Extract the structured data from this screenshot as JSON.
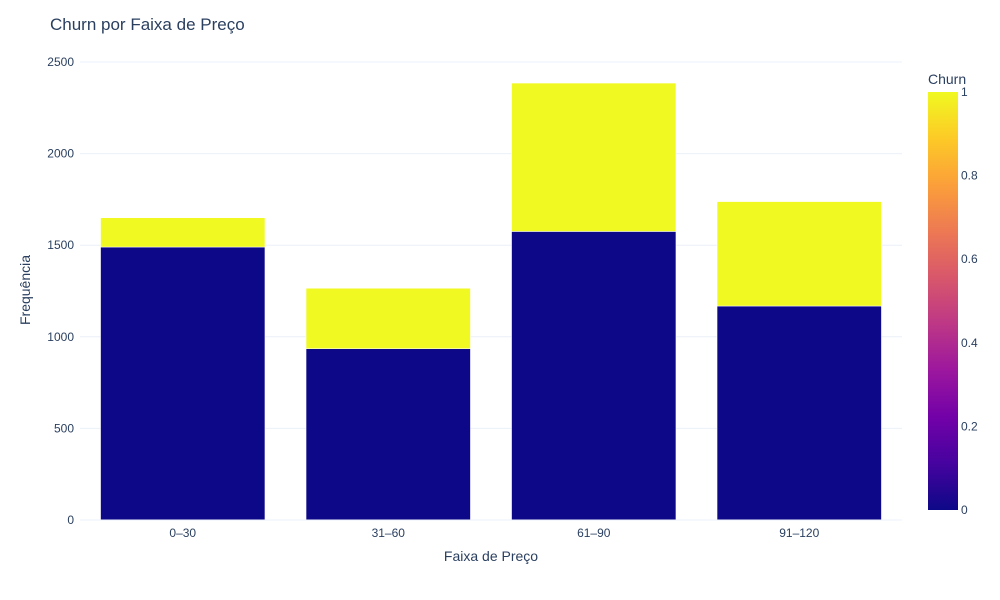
{
  "chart_data": {
    "type": "bar",
    "stacked": true,
    "title": "Churn por Faixa de Preço",
    "xlabel": "Faixa de Preço",
    "ylabel": "Frequência",
    "categories": [
      "0–30",
      "31–60",
      "61–90",
      "91–120"
    ],
    "series": [
      {
        "churn": 0,
        "values": [
          1490,
          935,
          1575,
          1168
        ],
        "color": "#0d0887"
      },
      {
        "churn": 1,
        "values": [
          160,
          330,
          810,
          570
        ],
        "color": "#f0f921"
      }
    ],
    "ylim": [
      0,
      2500
    ],
    "yticks": [
      0,
      500,
      1000,
      1500,
      2000,
      2500
    ],
    "grid": true,
    "colorbar": {
      "title": "Churn",
      "range": [
        0,
        1
      ],
      "ticks": [
        "0",
        "0.2",
        "0.4",
        "0.6",
        "0.8",
        "1"
      ],
      "colorscale": [
        "#0d0887",
        "#46039f",
        "#7201a8",
        "#9c179e",
        "#bd3786",
        "#d8576b",
        "#ed7953",
        "#fb9f3a",
        "#fdca26",
        "#f0f921"
      ]
    }
  }
}
